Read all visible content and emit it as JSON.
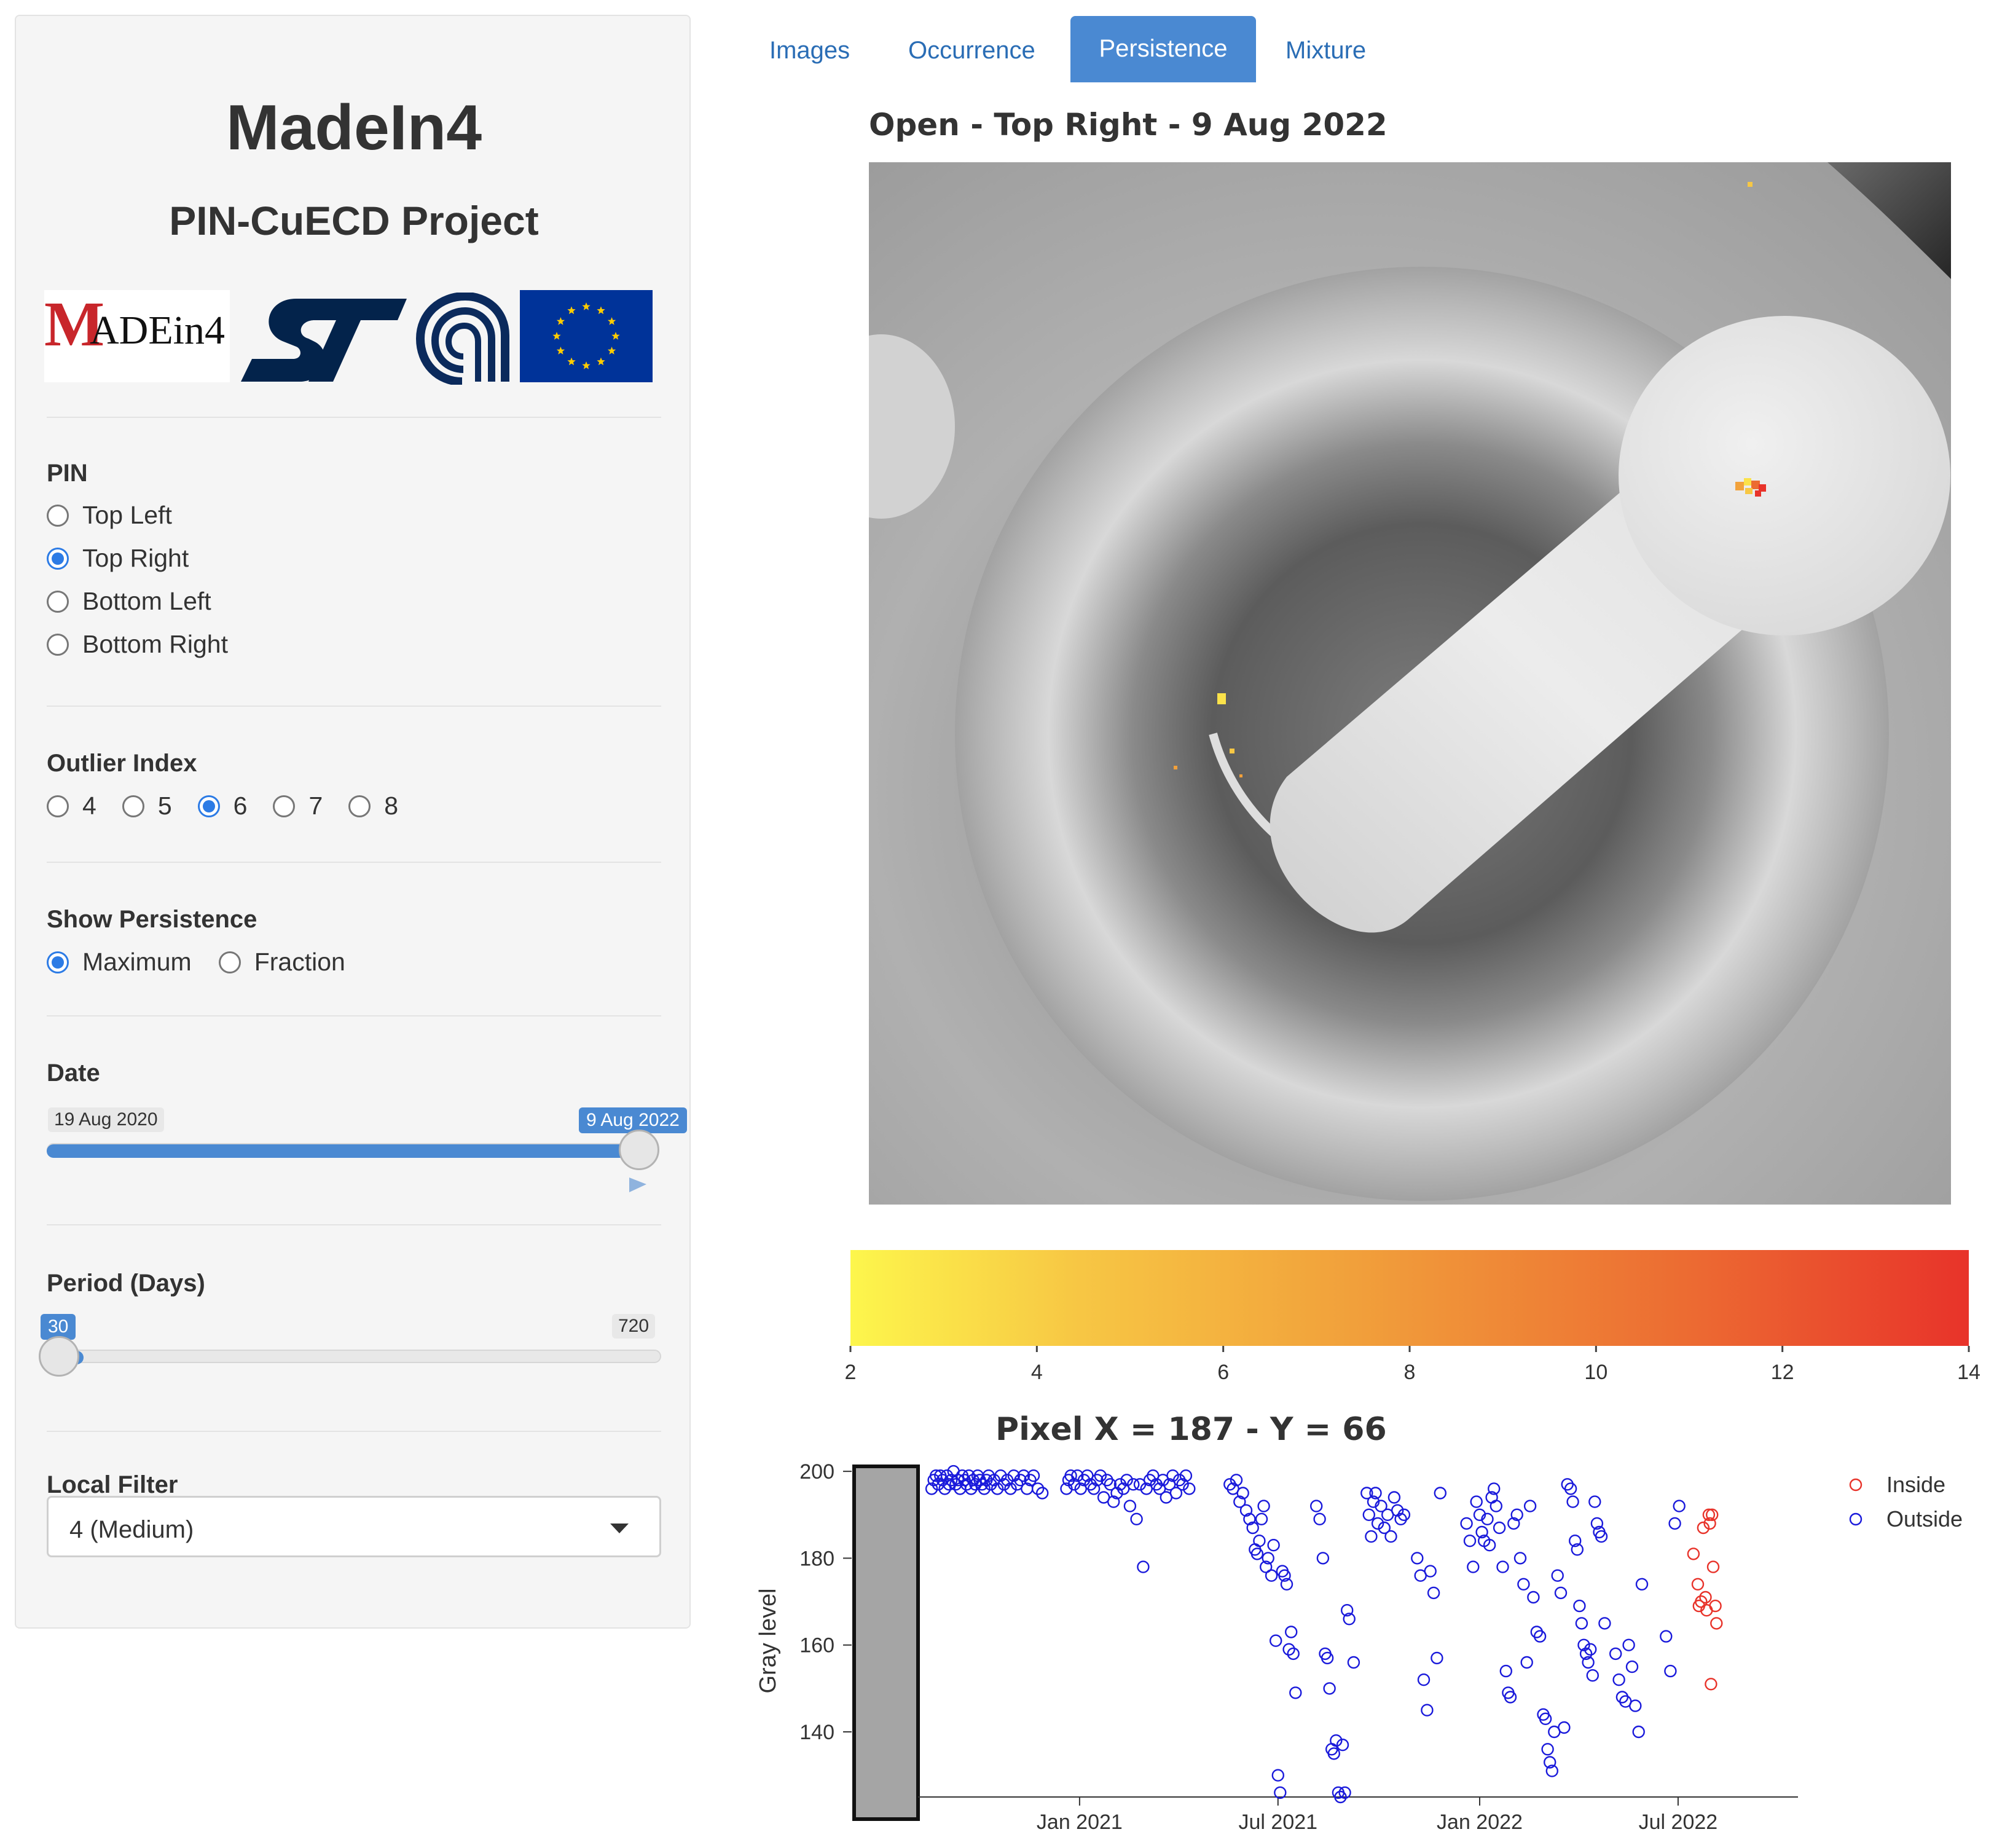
{
  "sidebar": {
    "app_title": "MadeIn4",
    "subtitle": "PIN-CuECD Project",
    "logos": {
      "madein4_m": "M",
      "madein4_rest": "ADEin4",
      "st": "ST",
      "cnr": "CNR",
      "eu": "EU flag"
    },
    "pin": {
      "label": "PIN",
      "options": [
        "Top Left",
        "Top Right",
        "Bottom Left",
        "Bottom Right"
      ],
      "selected": "Top Right"
    },
    "outlier_index": {
      "label": "Outlier Index",
      "options": [
        "4",
        "5",
        "6",
        "7",
        "8"
      ],
      "selected": "6"
    },
    "show_persistence": {
      "label": "Show Persistence",
      "options": [
        "Maximum",
        "Fraction"
      ],
      "selected": "Maximum"
    },
    "date": {
      "label": "Date",
      "min_label": "19 Aug 2020",
      "value_label": "9 Aug 2022",
      "fraction": 1.0
    },
    "period": {
      "label": "Period (Days)",
      "value_label": "30",
      "max_label": "720",
      "value": 30,
      "min": 30,
      "max": 720
    },
    "local_filter": {
      "label": "Local Filter",
      "value": "4 (Medium)"
    }
  },
  "tabs": [
    {
      "label": "Images",
      "active": false
    },
    {
      "label": "Occurrence",
      "active": false
    },
    {
      "label": "Persistence",
      "active": true
    },
    {
      "label": "Mixture",
      "active": false
    }
  ],
  "main": {
    "image_title": "Open - Top Right - 9 Aug 2022"
  },
  "colorbar": {
    "ticks": [
      "2",
      "4",
      "6",
      "8",
      "10",
      "12",
      "14"
    ],
    "min": 2,
    "max": 14,
    "colors": [
      "#fdf64c",
      "#e8332a"
    ]
  },
  "chart_data": {
    "type": "scatter",
    "title": "Pixel X = 187 - Y = 66",
    "xlabel": "",
    "ylabel": "Gray level",
    "ylim": [
      125,
      202
    ],
    "xlim": [
      "2020-08-10",
      "2022-10-15"
    ],
    "x_ticks": [
      {
        "date": "2021-01-01",
        "label": "Jan 2021"
      },
      {
        "date": "2021-07-01",
        "label": "Jul 2021"
      },
      {
        "date": "2022-01-01",
        "label": "Jan 2022"
      },
      {
        "date": "2022-07-01",
        "label": "Jul 2022"
      }
    ],
    "y_ticks": [
      140,
      160,
      180,
      200
    ],
    "grid": false,
    "legend_position": "top-right",
    "series": [
      {
        "name": "Inside",
        "color": "#e8332a",
        "points": [
          [
            "2022-07-15",
            181
          ],
          [
            "2022-07-19",
            174
          ],
          [
            "2022-07-20",
            169
          ],
          [
            "2022-07-22",
            170
          ],
          [
            "2022-07-24",
            187
          ],
          [
            "2022-07-26",
            171
          ],
          [
            "2022-07-27",
            168
          ],
          [
            "2022-07-29",
            190
          ],
          [
            "2022-07-30",
            188
          ],
          [
            "2022-07-31",
            151
          ],
          [
            "2022-08-01",
            190
          ],
          [
            "2022-08-02",
            178
          ],
          [
            "2022-08-04",
            169
          ],
          [
            "2022-08-05",
            165
          ]
        ]
      },
      {
        "name": "Outside",
        "color": "#1a1adb",
        "points": [
          [
            "2020-08-19",
            196
          ],
          [
            "2020-08-21",
            198
          ],
          [
            "2020-08-23",
            199
          ],
          [
            "2020-08-25",
            197
          ],
          [
            "2020-08-27",
            199
          ],
          [
            "2020-08-29",
            198
          ],
          [
            "2020-08-31",
            196
          ],
          [
            "2020-09-02",
            199
          ],
          [
            "2020-09-04",
            197
          ],
          [
            "2020-09-06",
            198
          ],
          [
            "2020-09-08",
            200
          ],
          [
            "2020-09-10",
            197
          ],
          [
            "2020-09-12",
            198
          ],
          [
            "2020-09-14",
            196
          ],
          [
            "2020-09-16",
            199
          ],
          [
            "2020-09-18",
            198
          ],
          [
            "2020-09-20",
            197
          ],
          [
            "2020-09-22",
            199
          ],
          [
            "2020-09-24",
            196
          ],
          [
            "2020-09-26",
            198
          ],
          [
            "2020-09-28",
            197
          ],
          [
            "2020-09-30",
            199
          ],
          [
            "2020-10-02",
            198
          ],
          [
            "2020-10-04",
            197
          ],
          [
            "2020-10-06",
            196
          ],
          [
            "2020-10-08",
            198
          ],
          [
            "2020-10-10",
            199
          ],
          [
            "2020-10-12",
            197
          ],
          [
            "2020-10-15",
            198
          ],
          [
            "2020-10-18",
            196
          ],
          [
            "2020-10-21",
            199
          ],
          [
            "2020-10-24",
            197
          ],
          [
            "2020-10-27",
            198
          ],
          [
            "2020-10-30",
            196
          ],
          [
            "2020-11-02",
            199
          ],
          [
            "2020-11-05",
            197
          ],
          [
            "2020-11-08",
            198
          ],
          [
            "2020-11-11",
            199
          ],
          [
            "2020-11-14",
            196
          ],
          [
            "2020-11-17",
            198
          ],
          [
            "2020-11-20",
            199
          ],
          [
            "2020-11-24",
            196
          ],
          [
            "2020-11-28",
            195
          ],
          [
            "2020-12-20",
            196
          ],
          [
            "2020-12-22",
            198
          ],
          [
            "2020-12-24",
            199
          ],
          [
            "2020-12-27",
            197
          ],
          [
            "2020-12-30",
            199
          ],
          [
            "2021-01-02",
            196
          ],
          [
            "2021-01-05",
            198
          ],
          [
            "2021-01-08",
            199
          ],
          [
            "2021-01-11",
            197
          ],
          [
            "2021-01-14",
            196
          ],
          [
            "2021-01-17",
            198
          ],
          [
            "2021-01-20",
            199
          ],
          [
            "2021-01-23",
            194
          ],
          [
            "2021-01-26",
            198
          ],
          [
            "2021-01-29",
            197
          ],
          [
            "2021-02-01",
            193
          ],
          [
            "2021-02-04",
            195
          ],
          [
            "2021-02-07",
            197
          ],
          [
            "2021-02-10",
            196
          ],
          [
            "2021-02-13",
            198
          ],
          [
            "2021-02-16",
            192
          ],
          [
            "2021-02-19",
            197
          ],
          [
            "2021-02-22",
            189
          ],
          [
            "2021-02-25",
            197
          ],
          [
            "2021-02-28",
            178
          ],
          [
            "2021-03-03",
            196
          ],
          [
            "2021-03-06",
            198
          ],
          [
            "2021-03-09",
            199
          ],
          [
            "2021-03-12",
            197
          ],
          [
            "2021-03-15",
            196
          ],
          [
            "2021-03-18",
            198
          ],
          [
            "2021-03-21",
            194
          ],
          [
            "2021-03-24",
            197
          ],
          [
            "2021-03-27",
            199
          ],
          [
            "2021-03-30",
            195
          ],
          [
            "2021-04-02",
            198
          ],
          [
            "2021-04-05",
            197
          ],
          [
            "2021-04-08",
            199
          ],
          [
            "2021-04-11",
            196
          ],
          [
            "2021-05-18",
            197
          ],
          [
            "2021-05-21",
            196
          ],
          [
            "2021-05-24",
            198
          ],
          [
            "2021-05-27",
            193
          ],
          [
            "2021-05-30",
            195
          ],
          [
            "2021-06-02",
            191
          ],
          [
            "2021-06-05",
            189
          ],
          [
            "2021-06-08",
            187
          ],
          [
            "2021-06-10",
            182
          ],
          [
            "2021-06-12",
            181
          ],
          [
            "2021-06-14",
            184
          ],
          [
            "2021-06-16",
            189
          ],
          [
            "2021-06-18",
            192
          ],
          [
            "2021-06-20",
            178
          ],
          [
            "2021-06-22",
            180
          ],
          [
            "2021-06-25",
            176
          ],
          [
            "2021-06-27",
            183
          ],
          [
            "2021-06-29",
            161
          ],
          [
            "2021-07-01",
            130
          ],
          [
            "2021-07-03",
            126
          ],
          [
            "2021-07-05",
            177
          ],
          [
            "2021-07-07",
            176
          ],
          [
            "2021-07-09",
            174
          ],
          [
            "2021-07-11",
            159
          ],
          [
            "2021-07-13",
            163
          ],
          [
            "2021-07-15",
            158
          ],
          [
            "2021-07-17",
            149
          ],
          [
            "2021-08-05",
            192
          ],
          [
            "2021-08-08",
            189
          ],
          [
            "2021-08-11",
            180
          ],
          [
            "2021-08-13",
            158
          ],
          [
            "2021-08-15",
            157
          ],
          [
            "2021-08-17",
            150
          ],
          [
            "2021-08-19",
            136
          ],
          [
            "2021-08-21",
            135
          ],
          [
            "2021-08-23",
            138
          ],
          [
            "2021-08-25",
            126
          ],
          [
            "2021-08-27",
            125
          ],
          [
            "2021-08-29",
            137
          ],
          [
            "2021-08-31",
            126
          ],
          [
            "2021-09-02",
            168
          ],
          [
            "2021-09-04",
            166
          ],
          [
            "2021-09-08",
            156
          ],
          [
            "2021-09-20",
            195
          ],
          [
            "2021-09-22",
            190
          ],
          [
            "2021-09-24",
            185
          ],
          [
            "2021-09-26",
            193
          ],
          [
            "2021-09-28",
            195
          ],
          [
            "2021-09-30",
            188
          ],
          [
            "2021-10-03",
            192
          ],
          [
            "2021-10-06",
            187
          ],
          [
            "2021-10-09",
            190
          ],
          [
            "2021-10-12",
            185
          ],
          [
            "2021-10-15",
            194
          ],
          [
            "2021-10-18",
            191
          ],
          [
            "2021-10-21",
            189
          ],
          [
            "2021-10-24",
            190
          ],
          [
            "2021-11-05",
            180
          ],
          [
            "2021-11-08",
            176
          ],
          [
            "2021-11-11",
            152
          ],
          [
            "2021-11-14",
            145
          ],
          [
            "2021-11-17",
            177
          ],
          [
            "2021-11-20",
            172
          ],
          [
            "2021-11-23",
            157
          ],
          [
            "2021-11-26",
            195
          ],
          [
            "2021-12-20",
            188
          ],
          [
            "2021-12-23",
            184
          ],
          [
            "2021-12-26",
            178
          ],
          [
            "2021-12-29",
            193
          ],
          [
            "2022-01-01",
            190
          ],
          [
            "2022-01-03",
            186
          ],
          [
            "2022-01-05",
            184
          ],
          [
            "2022-01-08",
            189
          ],
          [
            "2022-01-10",
            183
          ],
          [
            "2022-01-12",
            194
          ],
          [
            "2022-01-14",
            196
          ],
          [
            "2022-01-16",
            192
          ],
          [
            "2022-01-19",
            187
          ],
          [
            "2022-01-22",
            178
          ],
          [
            "2022-01-25",
            154
          ],
          [
            "2022-01-27",
            149
          ],
          [
            "2022-01-29",
            148
          ],
          [
            "2022-02-01",
            188
          ],
          [
            "2022-02-04",
            190
          ],
          [
            "2022-02-07",
            180
          ],
          [
            "2022-02-10",
            174
          ],
          [
            "2022-02-13",
            156
          ],
          [
            "2022-02-16",
            192
          ],
          [
            "2022-02-19",
            171
          ],
          [
            "2022-02-22",
            163
          ],
          [
            "2022-02-25",
            162
          ],
          [
            "2022-02-28",
            144
          ],
          [
            "2022-03-02",
            143
          ],
          [
            "2022-03-04",
            136
          ],
          [
            "2022-03-06",
            133
          ],
          [
            "2022-03-08",
            131
          ],
          [
            "2022-03-10",
            140
          ],
          [
            "2022-03-13",
            176
          ],
          [
            "2022-03-16",
            172
          ],
          [
            "2022-03-19",
            141
          ],
          [
            "2022-03-22",
            197
          ],
          [
            "2022-03-25",
            196
          ],
          [
            "2022-03-27",
            193
          ],
          [
            "2022-03-29",
            184
          ],
          [
            "2022-03-31",
            182
          ],
          [
            "2022-04-02",
            169
          ],
          [
            "2022-04-04",
            165
          ],
          [
            "2022-04-06",
            160
          ],
          [
            "2022-04-08",
            158
          ],
          [
            "2022-04-10",
            156
          ],
          [
            "2022-04-12",
            159
          ],
          [
            "2022-04-14",
            153
          ],
          [
            "2022-04-16",
            193
          ],
          [
            "2022-04-18",
            188
          ],
          [
            "2022-04-20",
            186
          ],
          [
            "2022-04-22",
            185
          ],
          [
            "2022-04-25",
            165
          ],
          [
            "2022-05-05",
            158
          ],
          [
            "2022-05-08",
            152
          ],
          [
            "2022-05-11",
            148
          ],
          [
            "2022-05-14",
            147
          ],
          [
            "2022-05-17",
            160
          ],
          [
            "2022-05-20",
            155
          ],
          [
            "2022-05-23",
            146
          ],
          [
            "2022-05-26",
            140
          ],
          [
            "2022-05-29",
            174
          ],
          [
            "2022-06-20",
            162
          ],
          [
            "2022-06-24",
            154
          ],
          [
            "2022-06-28",
            188
          ],
          [
            "2022-07-02",
            192
          ]
        ]
      }
    ]
  }
}
